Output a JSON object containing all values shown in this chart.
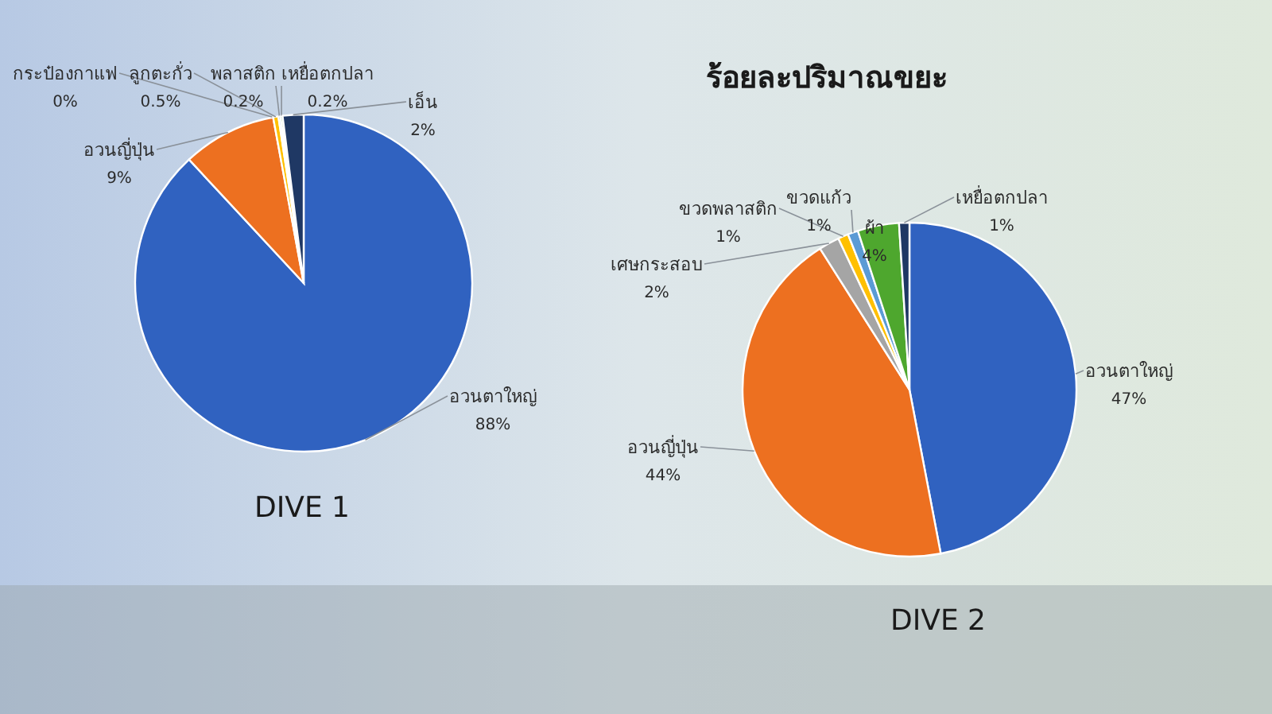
{
  "chart_data": [
    {
      "type": "pie",
      "title": "DIVE 1",
      "categories": [
        "อวนตาใหญ่",
        "อวนญี่ปุ่น",
        "กระป๋องกาแฟ",
        "ลูกตะกั่ว",
        "พลาสติก",
        "เหยื่อตกปลา",
        "เอ็น"
      ],
      "values": [
        88,
        9,
        0,
        0.5,
        0.2,
        0.2,
        2
      ],
      "value_labels": [
        "88%",
        "9%",
        "0%",
        "0.5%",
        "0.2%",
        "0.2%",
        "2%"
      ],
      "colors": [
        "#3062c0",
        "#ed7020",
        "#a5a5a5",
        "#ffc000",
        "#5b9bd5",
        "#4ea72e",
        "#1f3864"
      ]
    },
    {
      "type": "pie",
      "title": "ร้อยละปริมาณขยะ",
      "subtitle": "DIVE 2",
      "categories": [
        "อวนตาใหญ่",
        "อวนญี่ปุ่น",
        "เศษกระสอบ",
        "ขวดพลาสติก",
        "ขวดแก้ว",
        "ผ้า",
        "เหยื่อตกปลา"
      ],
      "values": [
        47,
        44,
        2,
        1,
        1,
        4,
        1
      ],
      "value_labels": [
        "47%",
        "44%",
        "2%",
        "1%",
        "1%",
        "4%",
        "1%"
      ],
      "colors": [
        "#3062c0",
        "#ed7020",
        "#a5a5a5",
        "#ffc000",
        "#5b9bd5",
        "#4ea72e",
        "#1f3864"
      ]
    }
  ]
}
